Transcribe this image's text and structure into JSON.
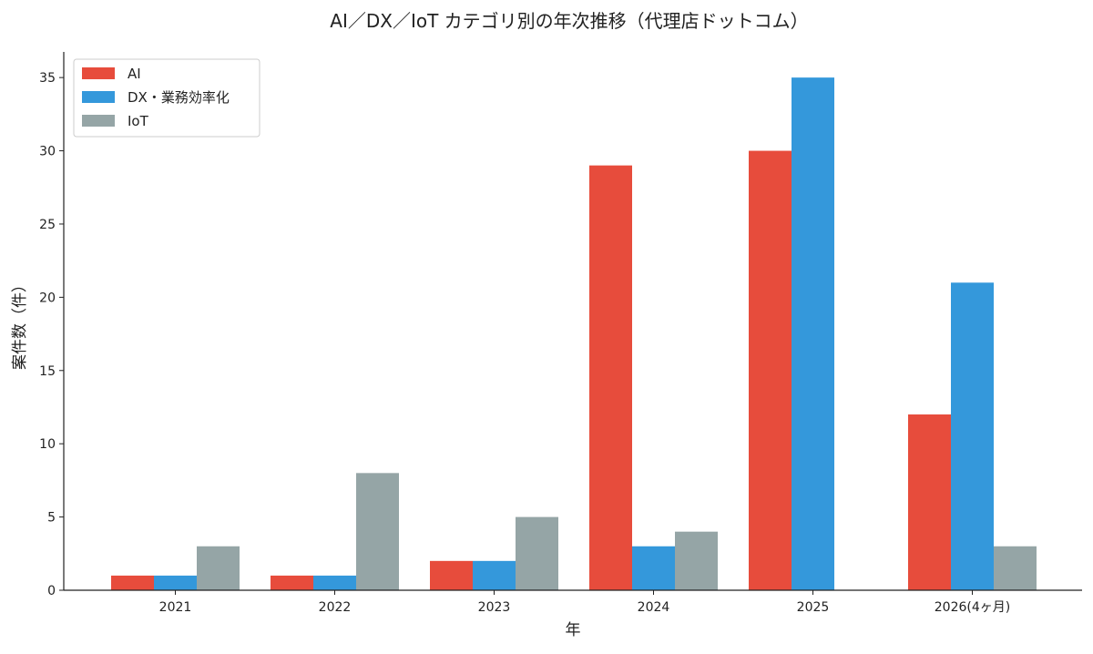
{
  "chart_data": {
    "type": "bar",
    "title": "AI／DX／IoT カテゴリ別の年次推移（代理店ドットコム）",
    "xlabel": "年",
    "ylabel": "案件数（件）",
    "categories": [
      "2021",
      "2022",
      "2023",
      "2024",
      "2025",
      "2026(4ヶ月)"
    ],
    "series": [
      {
        "name": "AI",
        "color": "#e74c3c",
        "values": [
          1,
          1,
          2,
          29,
          30,
          12
        ]
      },
      {
        "name": "DX・業務効率化",
        "color": "#3498db",
        "values": [
          1,
          1,
          2,
          3,
          35,
          21
        ]
      },
      {
        "name": "IoT",
        "color": "#95a5a6",
        "values": [
          3,
          8,
          5,
          4,
          0,
          3
        ]
      }
    ],
    "ylim": [
      0,
      36.75
    ],
    "yticks": [
      0,
      5,
      10,
      15,
      20,
      25,
      30,
      35
    ],
    "grid": false,
    "legend_position": "top-left"
  }
}
